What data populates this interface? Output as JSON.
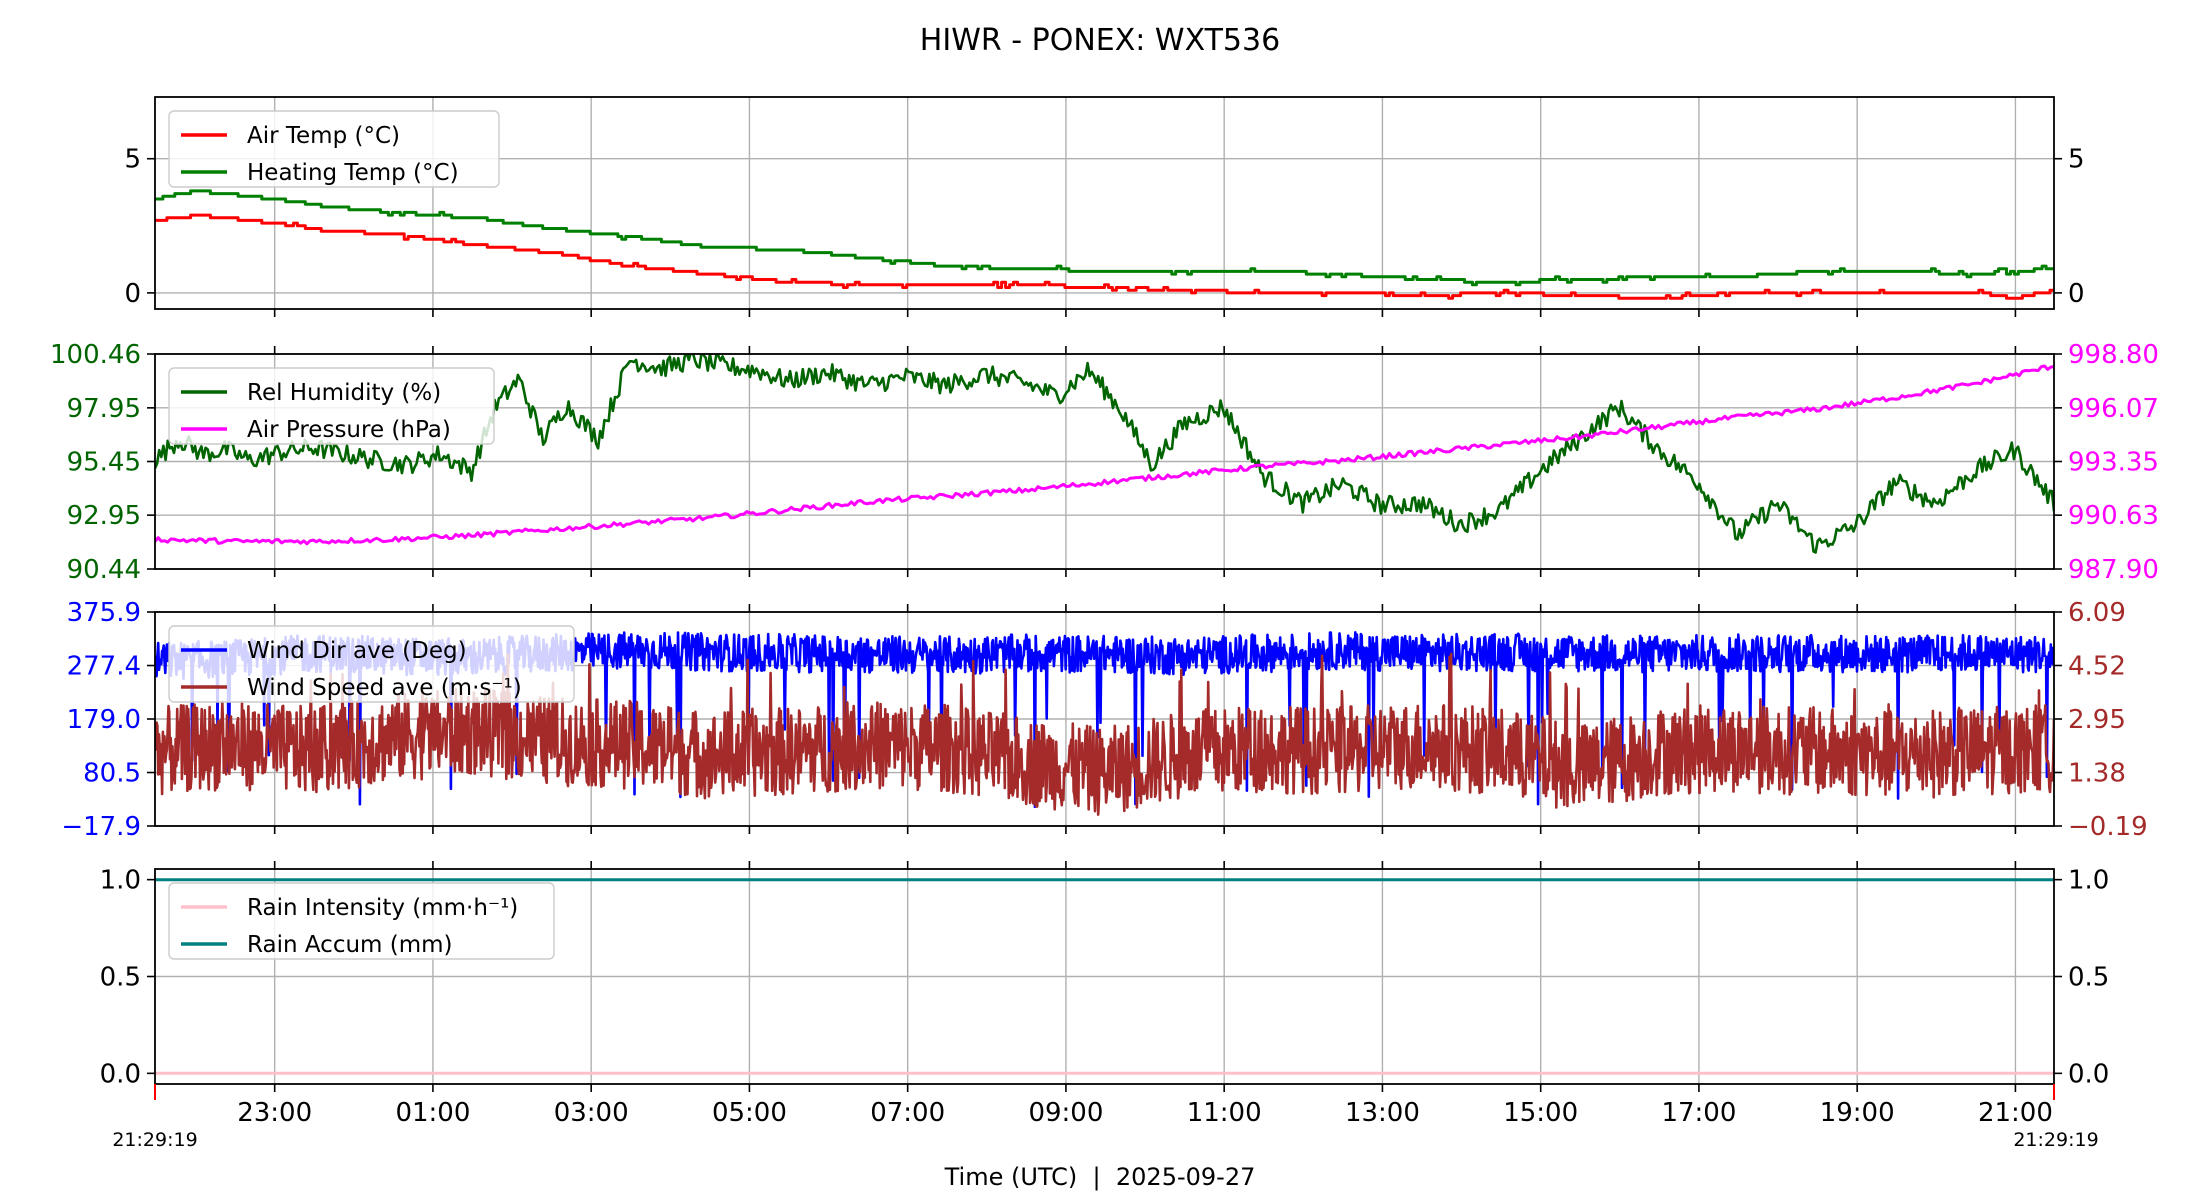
{
  "figure": {
    "title": "HIWR - PONEX: WXT536",
    "xlabel": "Time (UTC)  |  2025-09-27",
    "start_label": "21:29:19",
    "end_label": "21:29:19",
    "x_tick_labels": [
      "23:00",
      "01:00",
      "03:00",
      "05:00",
      "07:00",
      "09:00",
      "11:00",
      "13:00",
      "15:00",
      "17:00",
      "19:00",
      "21:00"
    ]
  },
  "chart_data": [
    {
      "type": "line",
      "panel": "temperature",
      "x_unit": "hours since 21:29:19 UTC",
      "xlim": [
        0,
        24
      ],
      "ylim": [
        -0.6,
        7.3
      ],
      "y_ticks": [
        0,
        5
      ],
      "y_tick_labels": [
        "0",
        "5"
      ],
      "right_y_ticks": [
        0,
        5
      ],
      "right_y_tick_labels": [
        "0",
        "5"
      ],
      "grid": true,
      "legend_position": "upper-left",
      "series": [
        {
          "name": "Heating Temp (°C)",
          "color": "#008000",
          "x": [
            0,
            0.5,
            1.5,
            2.2,
            3,
            4,
            5,
            6,
            7,
            8,
            9,
            10,
            11,
            12,
            13,
            14,
            15,
            16,
            17,
            18,
            19,
            20,
            21,
            22,
            23,
            24
          ],
          "y": [
            3.5,
            3.8,
            3.5,
            3.2,
            3.0,
            2.8,
            2.4,
            2.1,
            1.7,
            1.6,
            1.3,
            1.0,
            0.9,
            0.8,
            0.8,
            0.8,
            0.7,
            0.5,
            0.4,
            0.5,
            0.6,
            0.6,
            0.8,
            0.8,
            0.7,
            0.9
          ]
        },
        {
          "name": "Air Temp (°C)",
          "color": "#ff0000",
          "x": [
            0,
            0.5,
            1.5,
            2.2,
            3,
            4,
            5,
            6,
            7,
            8,
            9,
            10,
            11,
            12,
            13,
            14,
            15,
            16,
            17,
            18,
            19,
            20,
            21,
            22,
            23,
            23.5,
            24
          ],
          "y": [
            2.7,
            2.9,
            2.6,
            2.3,
            2.2,
            1.8,
            1.5,
            1.0,
            0.7,
            0.4,
            0.3,
            0.3,
            0.3,
            0.2,
            0.1,
            0.0,
            0.0,
            -0.1,
            0.0,
            -0.1,
            -0.2,
            0.0,
            0.0,
            0.0,
            0.0,
            -0.2,
            0.1
          ]
        }
      ]
    },
    {
      "type": "line",
      "panel": "humidity-pressure",
      "x_unit": "hours since 21:29:19 UTC",
      "xlim": [
        0,
        24
      ],
      "ylim": [
        90.44,
        100.46
      ],
      "y_ticks": [
        90.44,
        92.95,
        95.45,
        97.95,
        100.46
      ],
      "y_tick_labels": [
        "90.44",
        "92.95",
        "95.45",
        "97.95",
        "100.46"
      ],
      "right_ylim": [
        987.9,
        998.8
      ],
      "right_y_ticks": [
        987.9,
        990.63,
        993.35,
        996.07,
        998.8
      ],
      "right_y_tick_labels": [
        "987.90",
        "990.63",
        "993.35",
        "996.07",
        "998.80"
      ],
      "grid": true,
      "legend_position": "upper-left",
      "series": [
        {
          "name": "Rel Humidity (%)",
          "color": "#006400",
          "axis": "left",
          "x": [
            0,
            0.3,
            0.6,
            0.9,
            1.2,
            1.6,
            2.0,
            2.4,
            2.8,
            3.2,
            3.6,
            4.0,
            4.3,
            4.6,
            4.9,
            5.2,
            5.6,
            6.0,
            6.4,
            6.8,
            7.2,
            7.6,
            8.0,
            8.5,
            9.0,
            9.5,
            10.0,
            10.5,
            11.0,
            11.4,
            11.8,
            12.2,
            12.6,
            13.0,
            13.5,
            14.0,
            14.5,
            15.0,
            15.5,
            16.0,
            16.5,
            17.0,
            17.5,
            18.0,
            18.5,
            19.0,
            19.5,
            20.0,
            20.5,
            21.0,
            21.5,
            22.0,
            22.5,
            23.0,
            23.5,
            24.0
          ],
          "y": [
            95.5,
            96.5,
            95.8,
            96.0,
            95.5,
            95.9,
            96.1,
            95.8,
            95.5,
            95.3,
            95.8,
            95.0,
            98.0,
            99.3,
            96.5,
            98.1,
            96.5,
            100.2,
            99.8,
            100.2,
            99.9,
            99.7,
            99.2,
            99.6,
            99.0,
            99.4,
            99.0,
            99.5,
            99.1,
            98.5,
            99.7,
            97.9,
            95.3,
            97.2,
            98.0,
            94.8,
            93.5,
            94.4,
            93.4,
            93.5,
            92.5,
            93.2,
            95.0,
            96.5,
            98.0,
            96.0,
            94.5,
            92.0,
            93.5,
            91.5,
            92.5,
            94.5,
            93.5,
            95.0,
            96.0,
            93.5
          ]
        },
        {
          "name": "Air Pressure (hPa)",
          "color": "#ff00ff",
          "axis": "right",
          "x": [
            0,
            1,
            2,
            3,
            4,
            5,
            6,
            7,
            8,
            9,
            10,
            11,
            12,
            13,
            14,
            15,
            16,
            17,
            18,
            19,
            20,
            21,
            22,
            23,
            24
          ],
          "y": [
            989.4,
            989.3,
            989.3,
            989.4,
            989.6,
            989.9,
            990.2,
            990.5,
            990.9,
            991.3,
            991.6,
            991.9,
            992.3,
            992.7,
            993.1,
            993.4,
            993.8,
            994.2,
            994.6,
            995.1,
            995.6,
            996.0,
            996.6,
            997.3,
            998.2
          ]
        }
      ]
    },
    {
      "type": "line",
      "panel": "wind",
      "x_unit": "hours since 21:29:19 UTC",
      "xlim": [
        0,
        24
      ],
      "ylim": [
        -17.9,
        375.9
      ],
      "y_ticks": [
        -17.9,
        80.5,
        179.0,
        277.4,
        375.9
      ],
      "y_tick_labels": [
        "−17.9",
        "80.5",
        "179.0",
        "277.4",
        "375.9"
      ],
      "right_ylim": [
        -0.19,
        6.09
      ],
      "right_y_ticks": [
        -0.19,
        1.38,
        2.95,
        4.52,
        6.09
      ],
      "right_y_tick_labels": [
        "−0.19",
        "1.38",
        "2.95",
        "4.52",
        "6.09"
      ],
      "grid": true,
      "legend_position": "upper-left",
      "series": [
        {
          "name": "Wind Dir ave (Deg)",
          "color": "#0000ff",
          "axis": "left",
          "x": [
            0,
            1,
            2,
            3,
            4,
            5,
            6,
            7,
            8,
            9,
            10,
            11,
            12,
            13,
            14,
            15,
            16,
            17,
            18,
            19,
            20,
            21,
            22,
            23,
            24
          ],
          "y": [
            285,
            290,
            300,
            295,
            292,
            300,
            305,
            302,
            300,
            298,
            296,
            300,
            298,
            295,
            300,
            305,
            300,
            302,
            300,
            298,
            300,
            300,
            298,
            300,
            298
          ]
        },
        {
          "name": "Wind Speed ave (m·s⁻¹)",
          "color": "#a52a2a",
          "axis": "right",
          "x": [
            0,
            1,
            2,
            3,
            4,
            5,
            6,
            7,
            8,
            9,
            10,
            11,
            12,
            13,
            14,
            15,
            16,
            17,
            18,
            19,
            20,
            21,
            22,
            23,
            24
          ],
          "y": [
            2.0,
            2.2,
            2.0,
            2.4,
            2.6,
            2.3,
            2.2,
            1.9,
            2.0,
            2.2,
            2.1,
            1.7,
            1.4,
            1.9,
            2.1,
            2.0,
            2.2,
            2.0,
            1.5,
            2.0,
            2.1,
            2.0,
            1.9,
            2.0,
            2.1
          ]
        }
      ]
    },
    {
      "type": "line",
      "panel": "rain",
      "x_unit": "hours since 21:29:19 UTC",
      "xlim": [
        0,
        24
      ],
      "ylim": [
        -0.055,
        1.055
      ],
      "y_ticks": [
        0.0,
        0.5,
        1.0
      ],
      "y_tick_labels": [
        "0.0",
        "0.5",
        "1.0"
      ],
      "right_y_ticks": [
        0.0,
        0.5,
        1.0
      ],
      "right_y_tick_labels": [
        "0.0",
        "0.5",
        "1.0"
      ],
      "grid": true,
      "legend_position": "upper-left",
      "series": [
        {
          "name": "Rain Intensity (mm·h⁻¹)",
          "color": "#ffc0cb",
          "x": [
            0,
            24
          ],
          "y": [
            0.0,
            0.0
          ]
        },
        {
          "name": "Rain Accum (mm)",
          "color": "#008080",
          "x": [
            0,
            24
          ],
          "y": [
            1.0,
            1.0
          ]
        }
      ]
    }
  ]
}
